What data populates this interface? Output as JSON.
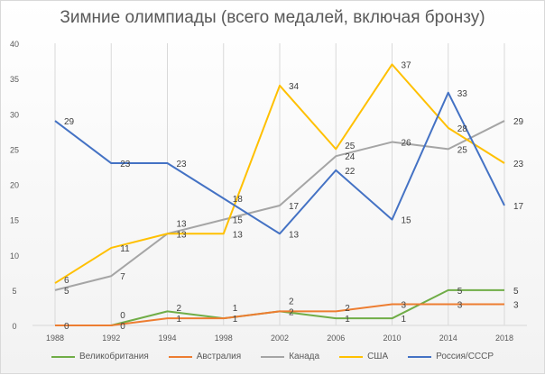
{
  "chart_data": {
    "type": "line",
    "title": "Зимние олимпиады (всего медалей, включая бронзу)",
    "categories": [
      "1988",
      "1992",
      "1994",
      "1998",
      "2002",
      "2006",
      "2010",
      "2014",
      "2018"
    ],
    "ylim": [
      0,
      40
    ],
    "yticks": [
      0,
      5,
      10,
      15,
      20,
      25,
      30,
      35,
      40
    ],
    "grid": "vertical",
    "legend": "bottom",
    "series": [
      {
        "name": "Великобритания",
        "color": "#70ad47",
        "values": [
          null,
          0,
          2,
          1,
          2,
          1,
          1,
          5,
          5
        ]
      },
      {
        "name": "Австралия",
        "color": "#ed7d31",
        "values": [
          0,
          0,
          1,
          1,
          2,
          2,
          3,
          3,
          3
        ]
      },
      {
        "name": "Канада",
        "color": "#a5a5a5",
        "values": [
          5,
          7,
          13,
          15,
          17,
          24,
          26,
          25,
          29
        ]
      },
      {
        "name": "США",
        "color": "#ffc000",
        "values": [
          6,
          11,
          13,
          13,
          34,
          25,
          37,
          28,
          23
        ]
      },
      {
        "name": "Россия/СССР",
        "color": "#4472c4",
        "values": [
          29,
          23,
          23,
          18,
          13,
          22,
          15,
          33,
          17
        ]
      }
    ]
  }
}
